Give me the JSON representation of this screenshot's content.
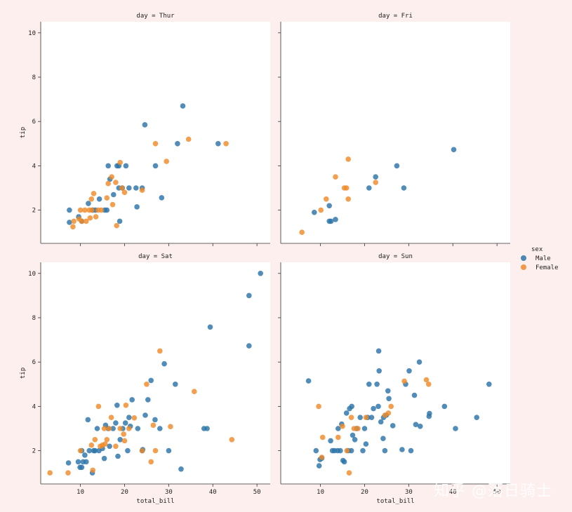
{
  "chart_data": {
    "type": "scatter",
    "facet_titles": [
      "day = Thur",
      "day = Fri",
      "day = Sat",
      "day = Sun"
    ],
    "xlabel": "total_bill",
    "ylabel": "tip",
    "xlim": [
      1,
      53
    ],
    "ylim": [
      0.5,
      10.5
    ],
    "x_ticks": [
      10,
      20,
      30,
      40,
      50
    ],
    "y_ticks": [
      2,
      4,
      6,
      8,
      10
    ],
    "legend": {
      "title": "sex",
      "entries": [
        "Male",
        "Female"
      ],
      "placement": "right"
    },
    "colors": {
      "Male": "#2b74a8",
      "Female": "#ef8a2a"
    },
    "facets": [
      {
        "day": "Thur",
        "series": [
          {
            "name": "Male",
            "points": [
              [
                7.5,
                2.0
              ],
              [
                7.5,
                1.45
              ],
              [
                9.6,
                1.7
              ],
              [
                10.3,
                1.5
              ],
              [
                11.8,
                2.3
              ],
              [
                12.8,
                2.0
              ],
              [
                13.4,
                2.0
              ],
              [
                14.3,
                2.5
              ],
              [
                15.5,
                2.0
              ],
              [
                16.0,
                2.0
              ],
              [
                16.3,
                4.0
              ],
              [
                16.7,
                3.4
              ],
              [
                17.5,
                2.7
              ],
              [
                18.3,
                4.0
              ],
              [
                18.7,
                4.0
              ],
              [
                18.7,
                3.0
              ],
              [
                18.9,
                1.5
              ],
              [
                19.5,
                3.0
              ],
              [
                20.3,
                4.0
              ],
              [
                21.0,
                3.0
              ],
              [
                22.6,
                3.0
              ],
              [
                22.8,
                2.15
              ],
              [
                24.0,
                3.0
              ],
              [
                24.6,
                5.85
              ],
              [
                27.0,
                4.0
              ],
              [
                28.4,
                2.56
              ],
              [
                32.0,
                5.0
              ],
              [
                33.2,
                6.7
              ],
              [
                41.2,
                5.0
              ]
            ]
          },
          {
            "name": "Female",
            "points": [
              [
                8.3,
                1.25
              ],
              [
                8.5,
                1.5
              ],
              [
                9.7,
                1.6
              ],
              [
                10.0,
                2.0
              ],
              [
                10.3,
                1.5
              ],
              [
                11.0,
                2.0
              ],
              [
                11.3,
                1.5
              ],
              [
                12.0,
                2.0
              ],
              [
                12.2,
                1.65
              ],
              [
                12.5,
                2.5
              ],
              [
                12.6,
                2.0
              ],
              [
                13.0,
                2.75
              ],
              [
                13.5,
                1.7
              ],
              [
                14.0,
                2.0
              ],
              [
                14.7,
                2.0
              ],
              [
                16.0,
                2.55
              ],
              [
                16.3,
                3.2
              ],
              [
                17.1,
                3.5
              ],
              [
                17.3,
                2.25
              ],
              [
                18.0,
                3.25
              ],
              [
                18.2,
                1.3
              ],
              [
                19.0,
                4.15
              ],
              [
                19.4,
                3.0
              ],
              [
                20.0,
                2.8
              ],
              [
                24.0,
                2.9
              ],
              [
                27.0,
                5.0
              ],
              [
                29.5,
                4.2
              ],
              [
                34.5,
                5.2
              ],
              [
                43.0,
                5.0
              ]
            ]
          }
        ]
      },
      {
        "day": "Fri",
        "series": [
          {
            "name": "Male",
            "points": [
              [
                8.6,
                1.9
              ],
              [
                12.0,
                2.2
              ],
              [
                12.0,
                1.5
              ],
              [
                12.4,
                1.5
              ],
              [
                13.4,
                1.58
              ],
              [
                21.0,
                3.0
              ],
              [
                22.5,
                3.5
              ],
              [
                27.3,
                4.0
              ],
              [
                28.9,
                3.0
              ],
              [
                40.2,
                4.73
              ]
            ]
          },
          {
            "name": "Female",
            "points": [
              [
                5.8,
                1.0
              ],
              [
                10.1,
                2.0
              ],
              [
                11.3,
                2.5
              ],
              [
                13.4,
                3.5
              ],
              [
                15.4,
                3.0
              ],
              [
                15.9,
                3.0
              ],
              [
                16.3,
                4.3
              ],
              [
                16.3,
                2.5
              ],
              [
                22.5,
                3.25
              ]
            ]
          }
        ]
      },
      {
        "day": "Sat",
        "series": [
          {
            "name": "Male",
            "points": [
              [
                7.3,
                1.45
              ],
              [
                9.5,
                1.5
              ],
              [
                9.9,
                1.25
              ],
              [
                10.3,
                1.25
              ],
              [
                10.6,
                1.5
              ],
              [
                10.3,
                2.0
              ],
              [
                11.0,
                1.8
              ],
              [
                11.3,
                1.5
              ],
              [
                11.7,
                3.4
              ],
              [
                12.0,
                2.0
              ],
              [
                12.7,
                1.0
              ],
              [
                13.0,
                2.0
              ],
              [
                13.3,
                2.0
              ],
              [
                13.8,
                3.0
              ],
              [
                14.2,
                2.0
              ],
              [
                15.0,
                2.1
              ],
              [
                15.4,
                1.65
              ],
              [
                15.7,
                3.15
              ],
              [
                16.3,
                3.0
              ],
              [
                16.6,
                2.2
              ],
              [
                17.4,
                3.0
              ],
              [
                18.0,
                3.25
              ],
              [
                18.3,
                4.05
              ],
              [
                18.5,
                1.75
              ],
              [
                19.0,
                2.5
              ],
              [
                19.6,
                3.0
              ],
              [
                20.2,
                3.25
              ],
              [
                20.7,
                2.0
              ],
              [
                21.0,
                3.5
              ],
              [
                21.3,
                3.1
              ],
              [
                21.7,
                4.3
              ],
              [
                23.0,
                3.0
              ],
              [
                24.0,
                2.0
              ],
              [
                24.7,
                3.6
              ],
              [
                24.1,
                2.05
              ],
              [
                25.3,
                4.3
              ],
              [
                26.0,
                5.17
              ],
              [
                26.9,
                3.4
              ],
              [
                28.0,
                3.0
              ],
              [
                29.0,
                5.92
              ],
              [
                30.0,
                2.0
              ],
              [
                31.5,
                5.0
              ],
              [
                32.8,
                1.17
              ],
              [
                38.0,
                3.0
              ],
              [
                38.7,
                3.0
              ],
              [
                39.4,
                7.58
              ],
              [
                48.2,
                9.0
              ],
              [
                48.2,
                6.73
              ],
              [
                50.8,
                10.0
              ]
            ]
          },
          {
            "name": "Female",
            "points": [
              [
                3.1,
                1.0
              ],
              [
                7.2,
                1.0
              ],
              [
                10.0,
                2.0
              ],
              [
                12.5,
                2.25
              ],
              [
                12.8,
                1.12
              ],
              [
                13.3,
                2.5
              ],
              [
                14.1,
                4.0
              ],
              [
                14.5,
                2.2
              ],
              [
                15.0,
                2.25
              ],
              [
                15.4,
                3.0
              ],
              [
                15.6,
                2.3
              ],
              [
                16.0,
                2.5
              ],
              [
                16.5,
                3.0
              ],
              [
                17.0,
                3.5
              ],
              [
                18.0,
                2.2
              ],
              [
                19.0,
                3.0
              ],
              [
                19.8,
                2.75
              ],
              [
                20.0,
                2.45
              ],
              [
                20.3,
                4.05
              ],
              [
                21.0,
                3.0
              ],
              [
                22.2,
                3.48
              ],
              [
                24.0,
                2.0
              ],
              [
                25.0,
                5.0
              ],
              [
                26.0,
                1.5
              ],
              [
                26.5,
                3.15
              ],
              [
                27.0,
                2.0
              ],
              [
                28.0,
                6.5
              ],
              [
                30.4,
                3.09
              ],
              [
                35.8,
                4.67
              ],
              [
                44.3,
                2.5
              ]
            ]
          }
        ]
      },
      {
        "day": "Sun",
        "series": [
          {
            "name": "Male",
            "points": [
              [
                7.3,
                5.15
              ],
              [
                9.0,
                2.0
              ],
              [
                9.7,
                1.32
              ],
              [
                9.9,
                1.6
              ],
              [
                10.3,
                1.66
              ],
              [
                12.3,
                2.45
              ],
              [
                12.7,
                2.0
              ],
              [
                13.2,
                2.0
              ],
              [
                13.9,
                2.0
              ],
              [
                14.0,
                3.0
              ],
              [
                14.5,
                2.0
              ],
              [
                14.8,
                3.2
              ],
              [
                15.1,
                1.56
              ],
              [
                15.4,
                1.5
              ],
              [
                15.9,
                3.7
              ],
              [
                16.3,
                2.0
              ],
              [
                16.6,
                3.9
              ],
              [
                17.0,
                2.0
              ],
              [
                17.1,
                4.0
              ],
              [
                17.3,
                2.7
              ],
              [
                17.8,
                2.5
              ],
              [
                18.2,
                3.0
              ],
              [
                19.0,
                3.5
              ],
              [
                19.6,
                2.0
              ],
              [
                20.0,
                3.0
              ],
              [
                20.3,
                2.3
              ],
              [
                20.7,
                3.5
              ],
              [
                21.0,
                5.0
              ],
              [
                21.6,
                3.5
              ],
              [
                22.0,
                3.9
              ],
              [
                22.8,
                5.0
              ],
              [
                23.1,
                4.0
              ],
              [
                23.2,
                6.5
              ],
              [
                23.3,
                5.6
              ],
              [
                23.7,
                3.3
              ],
              [
                24.2,
                2.55
              ],
              [
                24.3,
                3.5
              ],
              [
                24.6,
                2.0
              ],
              [
                24.9,
                3.6
              ],
              [
                25.3,
                4.7
              ],
              [
                25.5,
                4.35
              ],
              [
                26.4,
                3.13
              ],
              [
                28.5,
                2.05
              ],
              [
                29.3,
                5.0
              ],
              [
                30.1,
                5.6
              ],
              [
                30.5,
                2.0
              ],
              [
                31.3,
                4.5
              ],
              [
                31.6,
                3.18
              ],
              [
                32.4,
                6.0
              ],
              [
                32.6,
                3.1
              ],
              [
                34.6,
                3.55
              ],
              [
                34.7,
                3.68
              ],
              [
                38.1,
                4.0
              ],
              [
                40.6,
                3.0
              ],
              [
                45.4,
                3.5
              ],
              [
                48.2,
                5.0
              ]
            ]
          },
          {
            "name": "Female",
            "points": [
              [
                9.6,
                4.0
              ],
              [
                10.3,
                1.7
              ],
              [
                10.5,
                2.6
              ],
              [
                14.0,
                2.6
              ],
              [
                15.0,
                3.1
              ],
              [
                16.0,
                2.0
              ],
              [
                16.5,
                1.0
              ],
              [
                17.0,
                3.5
              ],
              [
                17.6,
                3.0
              ],
              [
                18.5,
                3.0
              ],
              [
                20.3,
                3.5
              ],
              [
                24.6,
                3.6
              ],
              [
                25.4,
                3.7
              ],
              [
                26.0,
                4.0
              ],
              [
                29.0,
                5.14
              ],
              [
                34.0,
                5.2
              ],
              [
                34.5,
                5.0
              ]
            ]
          }
        ]
      }
    ]
  },
  "watermark": "知乎 @落日骑士"
}
